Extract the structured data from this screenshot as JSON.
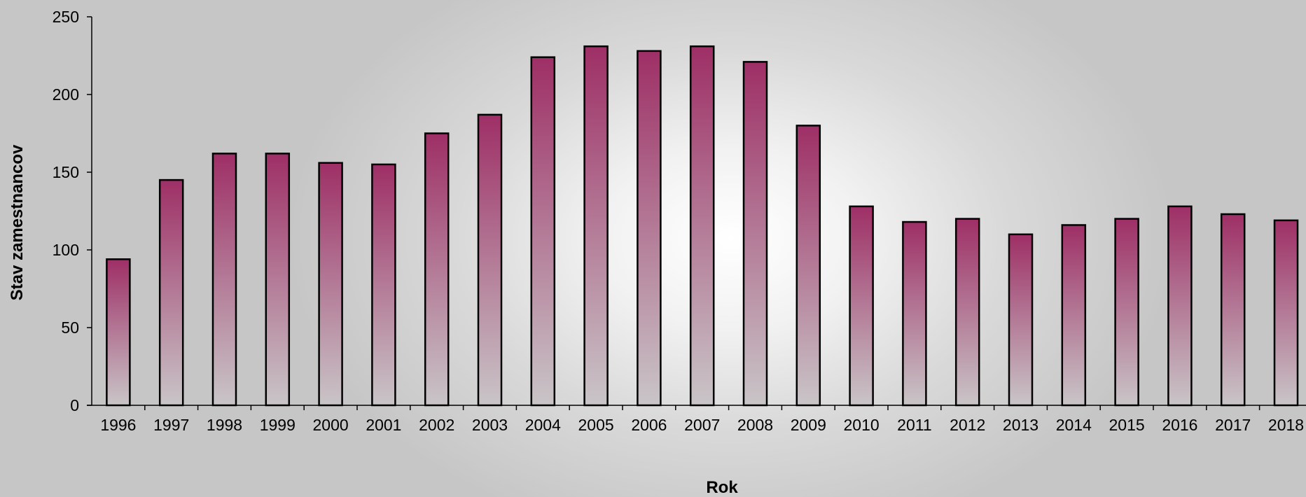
{
  "chart_data": {
    "type": "bar",
    "title": "",
    "xlabel": "Rok",
    "ylabel": "Stav zamestnancov",
    "categories": [
      "1996",
      "1997",
      "1998",
      "1999",
      "2000",
      "2001",
      "2002",
      "2003",
      "2004",
      "2005",
      "2006",
      "2007",
      "2008",
      "2009",
      "2010",
      "2011",
      "2012",
      "2013",
      "2014",
      "2015",
      "2016",
      "2017",
      "2018"
    ],
    "values": [
      94,
      145,
      162,
      162,
      156,
      155,
      175,
      187,
      224,
      231,
      228,
      231,
      221,
      180,
      128,
      118,
      120,
      110,
      116,
      120,
      128,
      123,
      119
    ],
    "ylim": [
      0,
      250
    ],
    "yticks": [
      0,
      50,
      100,
      150,
      200,
      250
    ],
    "grid": false,
    "legend": "none",
    "bar_color_top": "#9e2f66",
    "bar_color_bottom": "#c9c5c7",
    "axis_color": "#000000"
  }
}
